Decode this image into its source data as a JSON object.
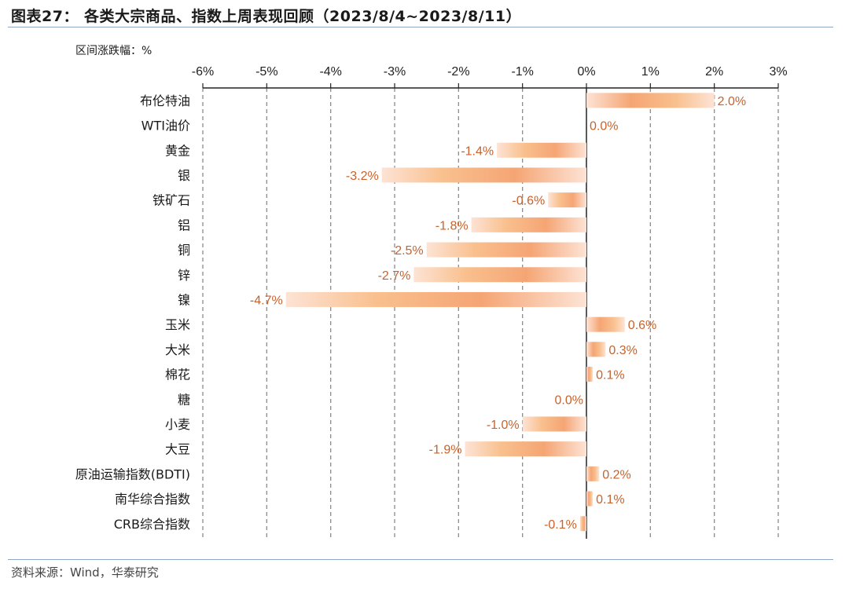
{
  "title": "图表27：  各类大宗商品、指数上周表现回顾（2023/8/4~2023/8/11）",
  "source": "资料来源：Wind，华泰研究",
  "colors": {
    "bar_light": "#fde3d5",
    "bar_mid": "#f9c08e",
    "bar_dark": "#f5a574",
    "label": "#c8622a",
    "grid": "#8c8c8c"
  },
  "chart_data": {
    "type": "bar",
    "orientation": "horizontal",
    "unit_label": "区间涨跌幅：%",
    "xlim": [
      -6,
      3
    ],
    "ticks": [
      -6,
      -5,
      -4,
      -3,
      -2,
      -1,
      0,
      1,
      2,
      3
    ],
    "tick_labels": [
      "-6%",
      "-5%",
      "-4%",
      "-3%",
      "-2%",
      "-1%",
      "0%",
      "1%",
      "2%",
      "3%"
    ],
    "grid": "vertical dashed",
    "categories": [
      "布伦特油",
      "WTI油价",
      "黄金",
      "银",
      "铁矿石",
      "铝",
      "铜",
      "锌",
      "镍",
      "玉米",
      "大米",
      "棉花",
      "糖",
      "小麦",
      "大豆",
      "原油运输指数(BDTI)",
      "南华综合指数",
      "CRB综合指数"
    ],
    "values": [
      2.0,
      0.0,
      -1.4,
      -3.2,
      -0.6,
      -1.8,
      -2.5,
      -2.7,
      -4.7,
      0.6,
      0.3,
      0.1,
      0.0,
      -1.0,
      -1.9,
      0.2,
      0.1,
      -0.1
    ],
    "data_labels": [
      "2.0%",
      "0.0%",
      "-1.4%",
      "-3.2%",
      "-0.6%",
      "-1.8%",
      "-2.5%",
      "-2.7%",
      "-4.7%",
      "0.6%",
      "0.3%",
      "0.1%",
      "0.0%",
      "-1.0%",
      "-1.9%",
      "0.2%",
      "0.1%",
      "-0.1%"
    ],
    "label_side": [
      "right",
      "right",
      "left",
      "left",
      "left",
      "left",
      "left",
      "left",
      "left",
      "right",
      "right",
      "right",
      "left",
      "left",
      "left",
      "right",
      "right",
      "left"
    ]
  }
}
